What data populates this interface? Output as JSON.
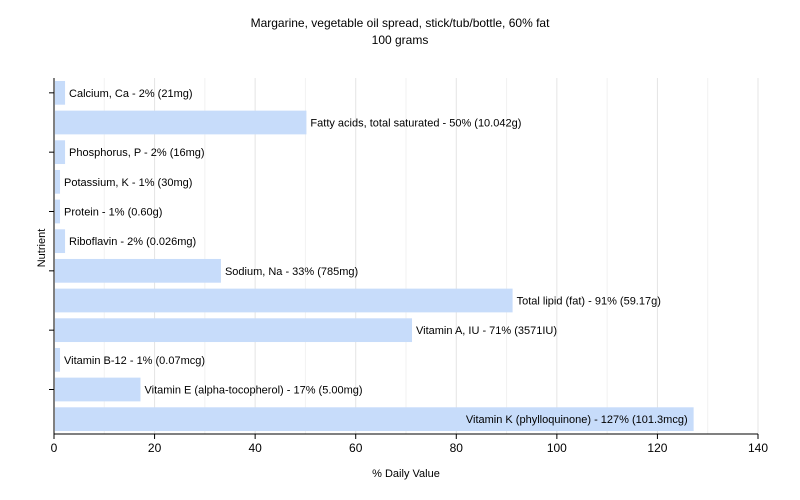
{
  "chart_data": {
    "type": "bar",
    "orientation": "horizontal",
    "title": "Margarine, vegetable oil spread, stick/tub/bottle, 60% fat",
    "subtitle": "100 grams",
    "xlabel": "% Daily Value",
    "ylabel": "Nutrient",
    "xlim": [
      0,
      140
    ],
    "xticks": [
      0,
      20,
      40,
      60,
      80,
      100,
      120,
      140
    ],
    "grid": true,
    "legend": "none",
    "bar_color": "#c7dcfa",
    "categories": [
      "Calcium, Ca",
      "Fatty acids, total saturated",
      "Phosphorus, P",
      "Potassium, K",
      "Protein",
      "Riboflavin",
      "Sodium, Na",
      "Total lipid (fat)",
      "Vitamin A, IU",
      "Vitamin B-12",
      "Vitamin E (alpha-tocopherol)",
      "Vitamin K (phylloquinone)"
    ],
    "values": [
      2,
      50,
      2,
      1,
      1,
      2,
      33,
      91,
      71,
      1,
      17,
      127
    ],
    "labels": [
      "Calcium, Ca - 2% (21mg)",
      "Fatty acids, total saturated - 50% (10.042g)",
      "Phosphorus, P - 2% (16mg)",
      "Potassium, K - 1% (30mg)",
      "Protein - 1% (0.60g)",
      "Riboflavin - 2% (0.026mg)",
      "Sodium, Na - 33% (785mg)",
      "Total lipid (fat) - 91% (59.17g)",
      "Vitamin A, IU - 71% (3571IU)",
      "Vitamin B-12 - 1% (0.07mcg)",
      "Vitamin E (alpha-tocopherol) - 17% (5.00mg)",
      "Vitamin K (phylloquinone) - 127% (101.3mcg)"
    ]
  }
}
